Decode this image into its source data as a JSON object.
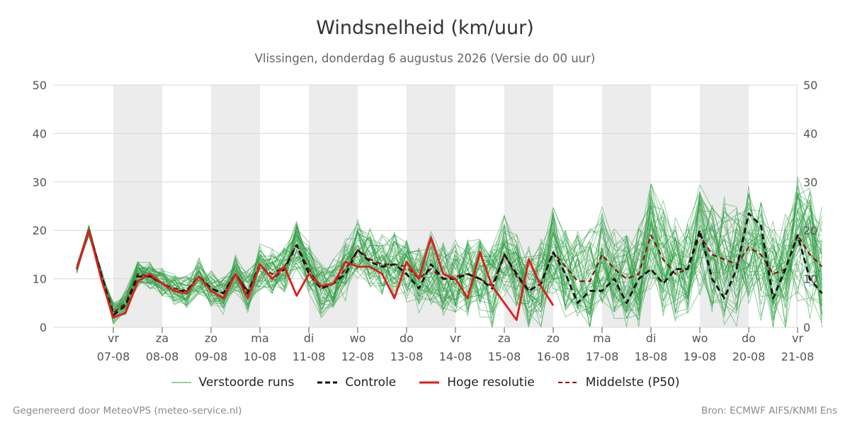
{
  "header": {
    "title": "Windsnelheid (km/uur)",
    "subtitle": "Vlissingen, donderdag  6 augustus 2026 (Versie do 00 uur)"
  },
  "footer": {
    "generated_by": "Gegenereerd door MeteoVPS (meteo-service.nl)",
    "source": "Bron: ECMWF AIFS/KNMI Ens"
  },
  "colors": {
    "ensemble": "#2e9e44",
    "control": "#111111",
    "high_res": "#e11b1b",
    "median": "#8b1010",
    "weekend_band": "#ececec",
    "grid": "#d8d8d8"
  },
  "chart_data": {
    "type": "line",
    "ylim": [
      0,
      50
    ],
    "yticks": [
      0,
      10,
      20,
      30,
      40,
      50
    ],
    "day_ticks": [
      {
        "day": "vr",
        "date": "07-08"
      },
      {
        "day": "za",
        "date": "08-08"
      },
      {
        "day": "zo",
        "date": "09-08"
      },
      {
        "day": "ma",
        "date": "10-08"
      },
      {
        "day": "di",
        "date": "11-08"
      },
      {
        "day": "wo",
        "date": "12-08"
      },
      {
        "day": "do",
        "date": "13-08"
      },
      {
        "day": "vr",
        "date": "14-08"
      },
      {
        "day": "za",
        "date": "15-08"
      },
      {
        "day": "zo",
        "date": "16-08"
      },
      {
        "day": "ma",
        "date": "17-08"
      },
      {
        "day": "di",
        "date": "18-08"
      },
      {
        "day": "wo",
        "date": "19-08"
      },
      {
        "day": "do",
        "date": "20-08"
      },
      {
        "day": "vr",
        "date": "21-08"
      }
    ],
    "shaded_day_indices": [
      0,
      2,
      4,
      6,
      8,
      10,
      12
    ],
    "time_step_days": 0.25,
    "start_offset_days": -0.75,
    "series": [
      {
        "name": "Controle",
        "style": "dashed",
        "values": [
          12,
          20,
          11,
          2.5,
          4.5,
          10.5,
          10.5,
          9,
          7.5,
          7.5,
          10.5,
          8,
          7,
          11,
          7,
          13,
          10,
          12,
          17,
          11,
          8,
          9,
          11,
          16,
          13.5,
          12.5,
          13,
          11,
          8,
          13,
          10,
          10,
          11,
          10,
          8,
          15,
          11,
          7.5,
          9,
          15.5,
          11,
          5,
          7.5,
          7.5,
          10,
          5,
          10,
          12,
          9,
          12,
          12,
          20,
          10,
          6,
          12,
          23.5,
          21,
          6,
          12,
          19,
          10,
          7
        ]
      },
      {
        "name": "Hoge resolutie",
        "style": "solid",
        "values": [
          12,
          20,
          10,
          2,
          3,
          9.5,
          11,
          9,
          7.5,
          7,
          10.5,
          7.5,
          6,
          11,
          6,
          13,
          10,
          12.5,
          6.5,
          11,
          8.5,
          9,
          13.5,
          12.5,
          12.5,
          11,
          6,
          13.5,
          10,
          18.5,
          11,
          10,
          6,
          15.5,
          8.5,
          5,
          1.5,
          14,
          8.5,
          4.5
        ]
      },
      {
        "name": "Middelste (P50)",
        "style": "dashed",
        "values": [
          12,
          20,
          11,
          3,
          5,
          11,
          10.5,
          9,
          8,
          7.5,
          10.5,
          8,
          7,
          11,
          7.5,
          12.5,
          11,
          12.5,
          17,
          12,
          8,
          9,
          12,
          16,
          14,
          13,
          13,
          12.5,
          10,
          12,
          10,
          10.5,
          11,
          10,
          8.5,
          15,
          10.5,
          7.5,
          9,
          15.5,
          12.5,
          9.5,
          9.5,
          15,
          12,
          10,
          11,
          19,
          14,
          11,
          12,
          19,
          15,
          14,
          13,
          16.5,
          15,
          11,
          12,
          19,
          15,
          12.5
        ]
      }
    ],
    "ensemble_member_label": "Verstoorde runs",
    "legend": [
      "Verstoorde runs",
      "Controle",
      "Hoge resolutie",
      "Middelste (P50)"
    ],
    "legend_placement": "bottom-center"
  }
}
